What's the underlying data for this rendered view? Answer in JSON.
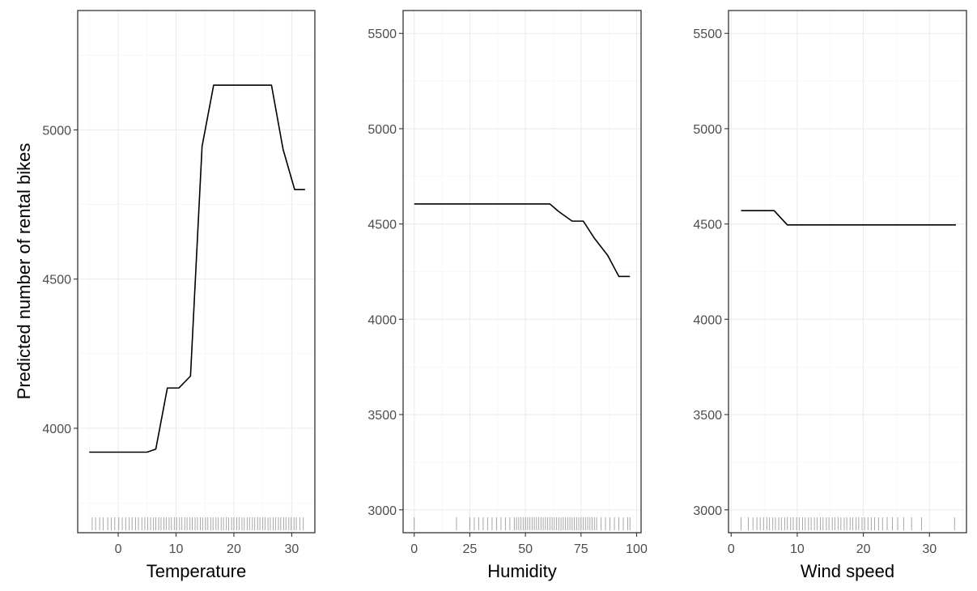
{
  "chart_data": [
    {
      "type": "line",
      "xlabel": "Temperature",
      "ylabel": "Predicted number of rental bikes",
      "xlim": [
        -7,
        34
      ],
      "ylim": [
        3650,
        5400
      ],
      "x_ticks": [
        0,
        10,
        20,
        30
      ],
      "y_ticks": [
        4000,
        4500,
        5000
      ],
      "grid": true,
      "series": [
        {
          "x": [
            -5,
            -3,
            -1,
            1,
            3,
            5,
            6.5,
            8.5,
            10.5,
            12.5,
            14.5,
            16.5,
            18.5,
            20.5,
            22.5,
            24.5,
            26.5,
            28.5,
            30.5,
            32.3
          ],
          "values": [
            3920,
            3920,
            3920,
            3920,
            3920,
            3920,
            3930,
            4135,
            4135,
            4175,
            4945,
            5150,
            5150,
            5150,
            5150,
            5150,
            5150,
            4935,
            4800,
            4800
          ]
        }
      ],
      "rug": [
        -4.5,
        -3.9,
        -3.2,
        -2.6,
        -1.8,
        -1.2,
        -0.6,
        0.1,
        0.7,
        1.3,
        1.9,
        2.4,
        3,
        3.5,
        4.1,
        4.6,
        5.1,
        5.6,
        6.1,
        6.5,
        7,
        7.4,
        7.9,
        8.3,
        8.8,
        9.2,
        9.7,
        10.1,
        10.6,
        11,
        11.5,
        11.9,
        12.4,
        12.8,
        13.3,
        13.7,
        14.2,
        14.6,
        15.1,
        15.5,
        16,
        16.4,
        16.9,
        17.3,
        17.8,
        18.2,
        18.7,
        19.1,
        19.6,
        20,
        20.5,
        20.9,
        21.4,
        21.8,
        22.3,
        22.7,
        23.2,
        23.6,
        24.1,
        24.5,
        25,
        25.4,
        25.9,
        26.3,
        26.8,
        27.2,
        27.7,
        28.1,
        28.6,
        29,
        29.5,
        29.9,
        30.4,
        30.8,
        31.4,
        32
      ]
    },
    {
      "type": "line",
      "xlabel": "Humidity",
      "ylabel": "",
      "xlim": [
        -5,
        102
      ],
      "ylim": [
        2880,
        5620
      ],
      "x_ticks": [
        0,
        25,
        50,
        75,
        100
      ],
      "y_ticks": [
        3000,
        3500,
        4000,
        4500,
        5000,
        5500
      ],
      "grid": true,
      "series": [
        {
          "x": [
            0,
            10,
            20,
            30,
            40,
            50,
            55,
            61,
            65,
            71,
            76,
            81,
            87,
            92,
            97
          ],
          "values": [
            4605,
            4605,
            4605,
            4605,
            4605,
            4605,
            4605,
            4605,
            4565,
            4515,
            4515,
            4425,
            4335,
            4225,
            4225
          ]
        }
      ],
      "rug": [
        0,
        19,
        25,
        27,
        29,
        31,
        33,
        35,
        37,
        39,
        41,
        43,
        45,
        46,
        47,
        48,
        49,
        50,
        51,
        52,
        53,
        54,
        55,
        56,
        57,
        58,
        59,
        60,
        61,
        62,
        63,
        64,
        65,
        66,
        67,
        68,
        69,
        70,
        71,
        72,
        73,
        74,
        75,
        76,
        77,
        78,
        79,
        80,
        81,
        82,
        84,
        86,
        88,
        90,
        92,
        94,
        96,
        97
      ]
    },
    {
      "type": "line",
      "xlabel": "Wind speed",
      "ylabel": "",
      "xlim": [
        -0.4,
        35.6
      ],
      "ylim": [
        2880,
        5620
      ],
      "x_ticks": [
        0,
        10,
        20,
        30
      ],
      "y_ticks": [
        3000,
        3500,
        4000,
        4500,
        5000,
        5500
      ],
      "grid": true,
      "series": [
        {
          "x": [
            1.5,
            4,
            6.5,
            8.5,
            10,
            15,
            20,
            25,
            30,
            34
          ],
          "values": [
            4570,
            4570,
            4570,
            4495,
            4495,
            4495,
            4495,
            4495,
            4495,
            4495
          ]
        }
      ],
      "rug": [
        1.5,
        2.6,
        3.3,
        3.9,
        4.4,
        4.9,
        5.4,
        5.8,
        6.3,
        6.7,
        7.2,
        7.6,
        8.1,
        8.5,
        9,
        9.4,
        9.9,
        10.3,
        10.8,
        11.2,
        11.7,
        12.1,
        12.6,
        13,
        13.5,
        13.9,
        14.4,
        14.8,
        15.3,
        15.7,
        16.2,
        16.6,
        17.1,
        17.5,
        18,
        18.4,
        18.9,
        19.3,
        19.8,
        20.2,
        20.7,
        21.2,
        21.7,
        22.3,
        22.9,
        23.6,
        24.4,
        25.2,
        26.1,
        27.3,
        28.8,
        33.8
      ]
    }
  ]
}
